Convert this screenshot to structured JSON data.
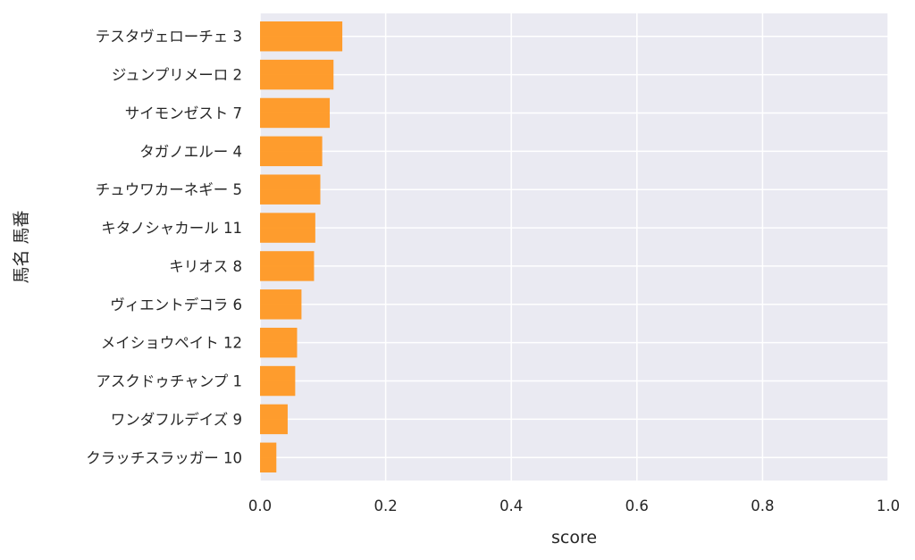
{
  "chart_data": {
    "type": "bar",
    "orientation": "horizontal",
    "categories": [
      "テスタヴェローチェ 3",
      "ジュンプリメーロ 2",
      "サイモンゼスト 7",
      "タガノエルー 4",
      "チュウワカーネギー 5",
      "キタノシャカール 11",
      "キリオス 8",
      "ヴィエントデコラ 6",
      "メイショウペイト 12",
      "アスクドゥチャンプ 1",
      "ワンダフルデイズ 9",
      "クラッチスラッガー 10"
    ],
    "values": [
      0.131,
      0.117,
      0.111,
      0.099,
      0.096,
      0.088,
      0.086,
      0.066,
      0.059,
      0.056,
      0.044,
      0.026
    ],
    "xlabel": "score",
    "ylabel": "馬名 馬番",
    "xlim": [
      0.0,
      1.0
    ],
    "xticks": [
      "0.0",
      "0.2",
      "0.4",
      "0.6",
      "0.8",
      "1.0"
    ],
    "grid": true,
    "colors": {
      "bar": "#ff9822",
      "background": "#eaeaf2",
      "grid": "#ffffff",
      "text": "#262626"
    }
  }
}
